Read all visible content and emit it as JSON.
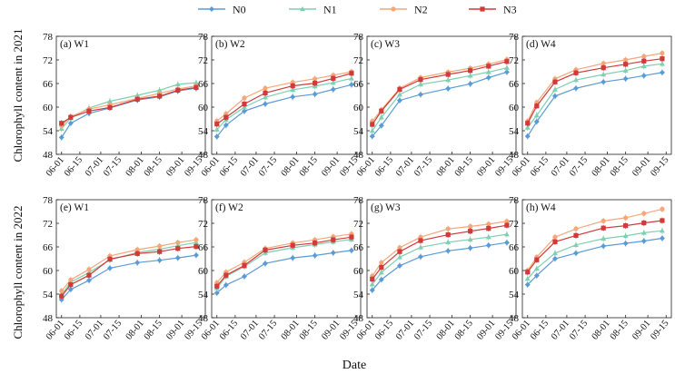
{
  "legend": [
    {
      "name": "N0",
      "color": "#5b9bd5",
      "marker": "diamond"
    },
    {
      "name": "N1",
      "color": "#7fcfb0",
      "marker": "triangle"
    },
    {
      "name": "N2",
      "color": "#f4a77a",
      "marker": "circle"
    },
    {
      "name": "N3",
      "color": "#d03a3a",
      "marker": "square"
    }
  ],
  "xlabel": "Date",
  "row_ylabels": [
    "Chlorophyll content in 2021",
    "Chlorophyll content in 2022"
  ],
  "chart_data": [
    {
      "type": "line",
      "title": "(a) W1",
      "categories": [
        "06-01",
        "06-15",
        "07-01",
        "07-15",
        "08-01",
        "08-15",
        "09-01",
        "09-15"
      ],
      "ylim": [
        48,
        78
      ],
      "yticks": [
        48,
        54,
        60,
        66,
        72,
        78
      ],
      "x": [
        "06-01",
        "06-08",
        "06-22",
        "07-08",
        "07-29",
        "08-15",
        "08-29",
        "09-12"
      ],
      "series": [
        {
          "name": "N0",
          "values": [
            52.3,
            55.9,
            58.4,
            59.8,
            61.8,
            62.6,
            64.1,
            64.8
          ]
        },
        {
          "name": "N1",
          "values": [
            54.5,
            57.2,
            59.8,
            61.5,
            63.0,
            64.3,
            65.8,
            66.2
          ]
        },
        {
          "name": "N2",
          "values": [
            55.3,
            57.6,
            59.5,
            60.6,
            62.2,
            63.5,
            64.6,
            65.4
          ]
        },
        {
          "name": "N3",
          "values": [
            55.9,
            57.4,
            59.0,
            59.9,
            62.0,
            62.8,
            64.3,
            65.0
          ]
        }
      ]
    },
    {
      "type": "line",
      "title": "(b) W2",
      "categories": [
        "06-01",
        "06-15",
        "07-01",
        "07-15",
        "08-01",
        "08-15",
        "09-01",
        "09-15"
      ],
      "ylim": [
        48,
        78
      ],
      "yticks": [
        48,
        54,
        60,
        66,
        72,
        78
      ],
      "x": [
        "06-01",
        "06-08",
        "06-22",
        "07-08",
        "07-29",
        "08-15",
        "08-29",
        "09-12"
      ],
      "series": [
        {
          "name": "N0",
          "values": [
            52.5,
            55.4,
            59.0,
            60.8,
            62.6,
            63.3,
            64.5,
            65.7
          ]
        },
        {
          "name": "N1",
          "values": [
            54.3,
            56.8,
            60.0,
            62.5,
            64.4,
            65.3,
            66.2,
            67.3
          ]
        },
        {
          "name": "N2",
          "values": [
            56.5,
            58.3,
            62.3,
            64.8,
            66.3,
            67.2,
            68.1,
            69.0
          ]
        },
        {
          "name": "N3",
          "values": [
            55.7,
            57.4,
            60.8,
            63.6,
            65.4,
            66.1,
            67.3,
            68.6
          ]
        }
      ]
    },
    {
      "type": "line",
      "title": "(c) W3",
      "categories": [
        "06-01",
        "06-15",
        "07-01",
        "07-15",
        "08-01",
        "08-15",
        "09-01",
        "09-15"
      ],
      "ylim": [
        48,
        78
      ],
      "yticks": [
        48,
        54,
        60,
        66,
        72,
        78
      ],
      "x": [
        "06-01",
        "06-08",
        "06-22",
        "07-08",
        "07-29",
        "08-15",
        "08-29",
        "09-12"
      ],
      "series": [
        {
          "name": "N0",
          "values": [
            52.6,
            55.3,
            61.7,
            63.2,
            64.7,
            65.9,
            67.5,
            68.9
          ]
        },
        {
          "name": "N1",
          "values": [
            54.0,
            57.4,
            63.2,
            65.8,
            66.9,
            68.0,
            68.9,
            70.0
          ]
        },
        {
          "name": "N2",
          "values": [
            56.4,
            59.3,
            64.8,
            67.5,
            68.9,
            69.9,
            70.9,
            72.1
          ]
        },
        {
          "name": "N3",
          "values": [
            55.6,
            59.0,
            64.5,
            67.0,
            68.3,
            69.3,
            70.4,
            71.6
          ]
        }
      ]
    },
    {
      "type": "line",
      "title": "(d) W4",
      "categories": [
        "06-01",
        "06-15",
        "07-01",
        "07-15",
        "08-01",
        "08-15",
        "09-01",
        "09-15"
      ],
      "ylim": [
        48,
        78
      ],
      "yticks": [
        48,
        54,
        60,
        66,
        72,
        78
      ],
      "x": [
        "06-01",
        "06-08",
        "06-22",
        "07-08",
        "07-29",
        "08-15",
        "08-29",
        "09-12"
      ],
      "series": [
        {
          "name": "N0",
          "values": [
            52.6,
            56.3,
            62.8,
            64.8,
            66.4,
            67.2,
            68.0,
            68.8
          ]
        },
        {
          "name": "N1",
          "values": [
            54.8,
            57.9,
            64.5,
            66.9,
            68.3,
            69.3,
            70.4,
            71.0
          ]
        },
        {
          "name": "N2",
          "values": [
            56.4,
            61.2,
            67.2,
            69.5,
            71.1,
            72.0,
            72.9,
            73.7
          ]
        },
        {
          "name": "N3",
          "values": [
            55.9,
            60.3,
            66.4,
            68.7,
            70.0,
            70.9,
            71.7,
            72.3
          ]
        }
      ]
    },
    {
      "type": "line",
      "title": "(e) W1",
      "categories": [
        "06-01",
        "06-15",
        "07-01",
        "07-15",
        "08-01",
        "08-15",
        "09-01",
        "09-15"
      ],
      "ylim": [
        48,
        78
      ],
      "yticks": [
        48,
        54,
        60,
        66,
        72,
        78
      ],
      "x": [
        "06-01",
        "06-08",
        "06-22",
        "07-08",
        "07-29",
        "08-15",
        "08-29",
        "09-12"
      ],
      "series": [
        {
          "name": "N0",
          "values": [
            52.6,
            55.2,
            57.5,
            60.6,
            62.0,
            62.6,
            63.2,
            63.9
          ]
        },
        {
          "name": "N1",
          "values": [
            53.8,
            57.0,
            59.5,
            62.7,
            64.6,
            65.4,
            66.3,
            67.1
          ]
        },
        {
          "name": "N2",
          "values": [
            54.8,
            57.6,
            60.3,
            63.7,
            65.3,
            66.2,
            67.1,
            67.8
          ]
        },
        {
          "name": "N3",
          "values": [
            53.5,
            56.4,
            58.8,
            62.9,
            64.3,
            64.8,
            65.6,
            66.1
          ]
        }
      ]
    },
    {
      "type": "line",
      "title": "(f) W2",
      "categories": [
        "06-01",
        "06-15",
        "07-01",
        "07-15",
        "08-01",
        "08-15",
        "09-01",
        "09-15"
      ],
      "ylim": [
        48,
        78
      ],
      "yticks": [
        48,
        54,
        60,
        66,
        72,
        78
      ],
      "x": [
        "06-01",
        "06-08",
        "06-22",
        "07-08",
        "07-29",
        "08-15",
        "08-29",
        "09-12"
      ],
      "series": [
        {
          "name": "N0",
          "values": [
            54.3,
            56.3,
            58.5,
            61.8,
            63.2,
            63.8,
            64.5,
            65.1
          ]
        },
        {
          "name": "N1",
          "values": [
            55.5,
            58.5,
            61.0,
            64.5,
            65.8,
            66.6,
            67.3,
            67.9
          ]
        },
        {
          "name": "N2",
          "values": [
            56.9,
            59.6,
            62.1,
            65.6,
            67.0,
            67.8,
            68.6,
            69.3
          ]
        },
        {
          "name": "N3",
          "values": [
            56.0,
            58.8,
            61.3,
            65.2,
            66.4,
            67.0,
            67.8,
            68.5
          ]
        }
      ]
    },
    {
      "type": "line",
      "title": "(g) W3",
      "categories": [
        "06-01",
        "06-15",
        "07-01",
        "07-15",
        "08-01",
        "08-15",
        "09-01",
        "09-15"
      ],
      "ylim": [
        48,
        78
      ],
      "yticks": [
        48,
        54,
        60,
        66,
        72,
        78
      ],
      "x": [
        "06-01",
        "06-08",
        "06-22",
        "07-08",
        "07-29",
        "08-15",
        "08-29",
        "09-12"
      ],
      "series": [
        {
          "name": "N0",
          "values": [
            55.0,
            57.7,
            61.2,
            63.5,
            65.0,
            65.7,
            66.4,
            67.1
          ]
        },
        {
          "name": "N1",
          "values": [
            56.5,
            59.5,
            63.4,
            65.9,
            67.2,
            67.9,
            68.5,
            69.2
          ]
        },
        {
          "name": "N2",
          "values": [
            58.6,
            62.0,
            65.8,
            68.5,
            70.6,
            71.2,
            71.8,
            72.5
          ]
        },
        {
          "name": "N3",
          "values": [
            57.8,
            60.8,
            64.8,
            67.6,
            69.1,
            70.0,
            70.7,
            71.5
          ]
        }
      ]
    },
    {
      "type": "line",
      "title": "(h) W4",
      "categories": [
        "06-01",
        "06-15",
        "07-01",
        "07-15",
        "08-01",
        "08-15",
        "09-01",
        "09-15"
      ],
      "ylim": [
        48,
        78
      ],
      "yticks": [
        48,
        54,
        60,
        66,
        72,
        78
      ],
      "x": [
        "06-01",
        "06-08",
        "06-22",
        "07-08",
        "07-29",
        "08-15",
        "08-29",
        "09-12"
      ],
      "series": [
        {
          "name": "N0",
          "values": [
            56.4,
            58.7,
            63.0,
            64.4,
            66.2,
            66.9,
            67.5,
            68.2
          ]
        },
        {
          "name": "N1",
          "values": [
            57.9,
            60.5,
            64.4,
            66.5,
            68.1,
            68.8,
            69.6,
            70.1
          ]
        },
        {
          "name": "N2",
          "values": [
            60.0,
            63.4,
            68.5,
            70.6,
            72.6,
            73.4,
            74.5,
            75.6
          ]
        },
        {
          "name": "N3",
          "values": [
            59.6,
            62.7,
            67.3,
            68.9,
            70.8,
            71.4,
            72.1,
            72.7
          ]
        }
      ]
    }
  ]
}
